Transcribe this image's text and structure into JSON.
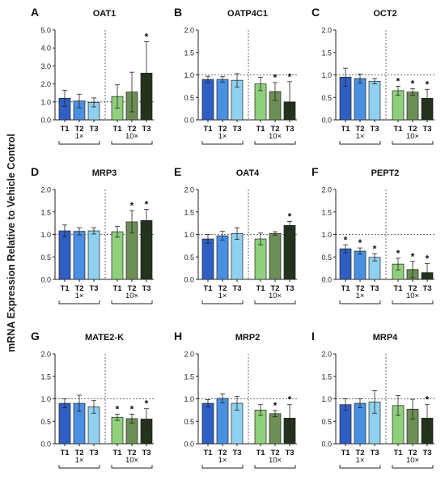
{
  "ylabel": "mRNA Expression Relative to Vehicle Control",
  "colors": {
    "T1_1x": "#2f5fc4",
    "T2_1x": "#4a90e2",
    "T3_1x": "#8fd0ef",
    "T1_10x": "#8fd07c",
    "T2_10x": "#6b8f55",
    "T3_10x": "#24331c"
  },
  "chart_data": [
    {
      "type": "bar",
      "letter": "A",
      "title": "OAT1",
      "ylim": [
        0,
        5.0
      ],
      "yticks": [
        "0.0",
        "1.0",
        "2.0",
        "3.0",
        "4.0",
        "5.0"
      ],
      "categories": [
        "T1",
        "T2",
        "T3",
        "T1",
        "T2",
        "T3"
      ],
      "groups": [
        "1×",
        "10×"
      ],
      "values": [
        1.2,
        1.05,
        0.97,
        1.3,
        1.55,
        2.6
      ],
      "errors": [
        0.45,
        0.38,
        0.25,
        0.65,
        1.1,
        1.75
      ],
      "significant": [
        false,
        false,
        false,
        false,
        false,
        true
      ],
      "reference_line": 1.0
    },
    {
      "type": "bar",
      "letter": "B",
      "title": "OATP4C1",
      "ylim": [
        0,
        2.0
      ],
      "yticks": [
        "0.0",
        "0.5",
        "1.0",
        "1.5",
        "2.0"
      ],
      "categories": [
        "T1",
        "T2",
        "T3",
        "T1",
        "T2",
        "T3"
      ],
      "groups": [
        "1×",
        "10×"
      ],
      "values": [
        0.9,
        0.9,
        0.88,
        0.8,
        0.63,
        0.4
      ],
      "errors": [
        0.07,
        0.06,
        0.15,
        0.15,
        0.2,
        0.45
      ],
      "significant": [
        false,
        false,
        false,
        false,
        true,
        true
      ],
      "reference_line": 1.0
    },
    {
      "type": "bar",
      "letter": "C",
      "title": "OCT2",
      "ylim": [
        0,
        2.0
      ],
      "yticks": [
        "0.0",
        "0.5",
        "1.0",
        "1.5",
        "2.0"
      ],
      "categories": [
        "T1",
        "T2",
        "T3",
        "T1",
        "T2",
        "T3"
      ],
      "groups": [
        "1×",
        "10×"
      ],
      "values": [
        0.95,
        0.92,
        0.86,
        0.65,
        0.62,
        0.48
      ],
      "errors": [
        0.2,
        0.1,
        0.06,
        0.1,
        0.07,
        0.2
      ],
      "significant": [
        false,
        false,
        false,
        true,
        true,
        true
      ],
      "reference_line": 1.0
    },
    {
      "type": "bar",
      "letter": "D",
      "title": "MRP3",
      "ylim": [
        0,
        2.0
      ],
      "yticks": [
        "0.0",
        "0.5",
        "1.0",
        "1.5",
        "2.0"
      ],
      "categories": [
        "T1",
        "T2",
        "T3",
        "T1",
        "T2",
        "T3"
      ],
      "groups": [
        "1×",
        "10×"
      ],
      "values": [
        1.08,
        1.07,
        1.08,
        1.06,
        1.28,
        1.31
      ],
      "errors": [
        0.13,
        0.08,
        0.07,
        0.12,
        0.25,
        0.25
      ],
      "significant": [
        false,
        false,
        false,
        false,
        true,
        true
      ],
      "reference_line": 1.0
    },
    {
      "type": "bar",
      "letter": "E",
      "title": "OAT4",
      "ylim": [
        0,
        2.0
      ],
      "yticks": [
        "0.0",
        "0.5",
        "1.0",
        "1.5",
        "2.0"
      ],
      "categories": [
        "T1",
        "T2",
        "T3",
        "T1",
        "T2",
        "T3"
      ],
      "groups": [
        "1×",
        "10×"
      ],
      "values": [
        0.9,
        0.97,
        1.02,
        0.9,
        1.02,
        1.2
      ],
      "errors": [
        0.1,
        0.1,
        0.13,
        0.13,
        0.04,
        0.09
      ],
      "significant": [
        false,
        false,
        false,
        false,
        false,
        true
      ],
      "reference_line": 1.0
    },
    {
      "type": "bar",
      "letter": "F",
      "title": "PEPT2",
      "ylim": [
        0,
        2.0
      ],
      "yticks": [
        "0.0",
        "0.5",
        "1.0",
        "1.5",
        "2.0"
      ],
      "categories": [
        "T1",
        "T2",
        "T3",
        "T1",
        "T2",
        "T3"
      ],
      "groups": [
        "1×",
        "10×"
      ],
      "values": [
        0.68,
        0.63,
        0.49,
        0.34,
        0.22,
        0.15
      ],
      "errors": [
        0.09,
        0.07,
        0.08,
        0.13,
        0.18,
        0.2
      ],
      "significant": [
        true,
        true,
        true,
        true,
        true,
        true
      ],
      "reference_line": 1.0
    },
    {
      "type": "bar",
      "letter": "G",
      "title": "MATE2-K",
      "ylim": [
        0,
        2.0
      ],
      "yticks": [
        "0.0",
        "0.5",
        "1.0",
        "1.5",
        "2.0"
      ],
      "categories": [
        "T1",
        "T2",
        "T3",
        "T1",
        "T2",
        "T3"
      ],
      "groups": [
        "1×",
        "10×"
      ],
      "values": [
        0.9,
        0.9,
        0.82,
        0.59,
        0.56,
        0.55
      ],
      "errors": [
        0.1,
        0.18,
        0.14,
        0.07,
        0.1,
        0.23
      ],
      "significant": [
        false,
        false,
        false,
        true,
        true,
        true
      ],
      "reference_line": 1.0
    },
    {
      "type": "bar",
      "letter": "H",
      "title": "MRP2",
      "ylim": [
        0,
        2.0
      ],
      "yticks": [
        "0.0",
        "0.5",
        "1.0",
        "1.5",
        "2.0"
      ],
      "categories": [
        "T1",
        "T2",
        "T3",
        "T1",
        "T2",
        "T3"
      ],
      "groups": [
        "1×",
        "10×"
      ],
      "values": [
        0.9,
        1.01,
        0.9,
        0.75,
        0.67,
        0.57
      ],
      "errors": [
        0.08,
        0.1,
        0.15,
        0.12,
        0.07,
        0.3
      ],
      "significant": [
        false,
        false,
        false,
        false,
        true,
        true
      ],
      "reference_line": 1.0
    },
    {
      "type": "bar",
      "letter": "I",
      "title": "MRP4",
      "ylim": [
        0,
        2.0
      ],
      "yticks": [
        "0.0",
        "0.5",
        "1.0",
        "1.5",
        "2.0"
      ],
      "categories": [
        "T1",
        "T2",
        "T3",
        "T1",
        "T2",
        "T3"
      ],
      "groups": [
        "1×",
        "10×"
      ],
      "values": [
        0.87,
        0.9,
        0.93,
        0.85,
        0.77,
        0.57
      ],
      "errors": [
        0.13,
        0.1,
        0.25,
        0.22,
        0.22,
        0.3
      ],
      "significant": [
        false,
        false,
        false,
        false,
        false,
        true
      ],
      "reference_line": 1.0
    }
  ]
}
